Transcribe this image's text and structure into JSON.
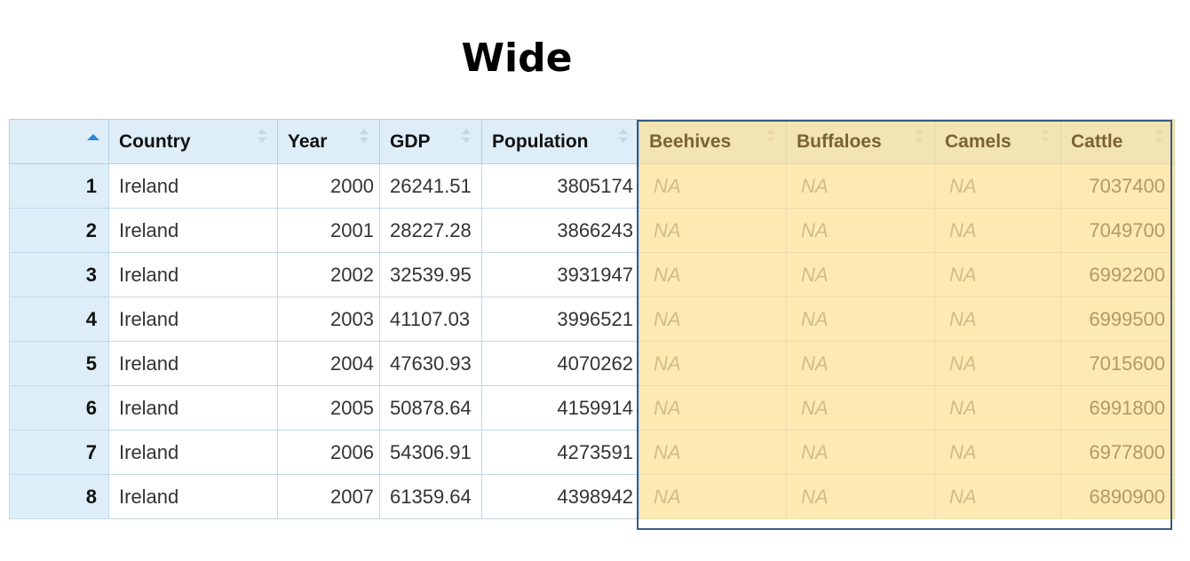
{
  "title": "Wide",
  "table": {
    "columns": [
      "Country",
      "Year",
      "GDP",
      "Population",
      "Beehives",
      "Buffaloes",
      "Camels",
      "Cattle"
    ],
    "rows": [
      {
        "idx": "1",
        "country": "Ireland",
        "year": "2000",
        "gdp": "26241.51",
        "population": "3805174",
        "beehives": "NA",
        "buffaloes": "NA",
        "camels": "NA",
        "cattle": "7037400"
      },
      {
        "idx": "2",
        "country": "Ireland",
        "year": "2001",
        "gdp": "28227.28",
        "population": "3866243",
        "beehives": "NA",
        "buffaloes": "NA",
        "camels": "NA",
        "cattle": "7049700"
      },
      {
        "idx": "3",
        "country": "Ireland",
        "year": "2002",
        "gdp": "32539.95",
        "population": "3931947",
        "beehives": "NA",
        "buffaloes": "NA",
        "camels": "NA",
        "cattle": "6992200"
      },
      {
        "idx": "4",
        "country": "Ireland",
        "year": "2003",
        "gdp": "41107.03",
        "population": "3996521",
        "beehives": "NA",
        "buffaloes": "NA",
        "camels": "NA",
        "cattle": "6999500"
      },
      {
        "idx": "5",
        "country": "Ireland",
        "year": "2004",
        "gdp": "47630.93",
        "population": "4070262",
        "beehives": "NA",
        "buffaloes": "NA",
        "camels": "NA",
        "cattle": "7015600"
      },
      {
        "idx": "6",
        "country": "Ireland",
        "year": "2005",
        "gdp": "50878.64",
        "population": "4159914",
        "beehives": "NA",
        "buffaloes": "NA",
        "camels": "NA",
        "cattle": "6991800"
      },
      {
        "idx": "7",
        "country": "Ireland",
        "year": "2006",
        "gdp": "54306.91",
        "population": "4273591",
        "beehives": "NA",
        "buffaloes": "NA",
        "camels": "NA",
        "cattle": "6977800"
      },
      {
        "idx": "8",
        "country": "Ireland",
        "year": "2007",
        "gdp": "61359.64",
        "population": "4398942",
        "beehives": "NA",
        "buffaloes": "NA",
        "camels": "NA",
        "cattle": "6890900"
      }
    ]
  },
  "colors": {
    "header_bg": "#deeef8",
    "highlight_bg": "#fde9b2",
    "highlight_border": "#3a5a80",
    "sort_active": "#2a86d8"
  },
  "icons": {
    "sort_active": "sort-ascending-icon",
    "sort": "sort-both-icon"
  }
}
